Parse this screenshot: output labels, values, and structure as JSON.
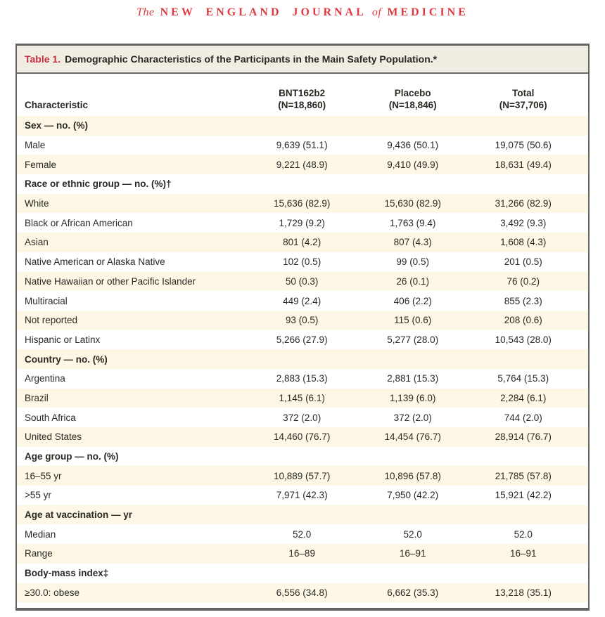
{
  "masthead": {
    "word_the": "The",
    "words_caps_1": "NEW ENGLAND JOURNAL",
    "word_of": "of",
    "words_caps_2": "MEDICINE"
  },
  "colors": {
    "masthead_red": "#de3b41",
    "table_label_red": "#c52f3e",
    "title_bar_bg": "#f2ede2",
    "row_cream": "#fdf7e6",
    "row_white": "#ffffff",
    "frame_gray": "#636363",
    "text": "#2b2824"
  },
  "table": {
    "title_label": "Table 1.",
    "title_text": "Demographic Characteristics of the Participants in the Main Safety Population.*",
    "columns": [
      {
        "line1": "Characteristic",
        "line2": ""
      },
      {
        "line1": "BNT162b2",
        "line2": "(N=18,860)"
      },
      {
        "line1": "Placebo",
        "line2": "(N=18,846)"
      },
      {
        "line1": "Total",
        "line2": "(N=37,706)"
      }
    ],
    "rows": [
      {
        "section": true,
        "label": "Sex — no. (%)"
      },
      {
        "section": false,
        "label": "Male",
        "values": [
          "9,639 (51.1)",
          "9,436 (50.1)",
          "19,075 (50.6)"
        ]
      },
      {
        "section": false,
        "label": "Female",
        "values": [
          "9,221 (48.9)",
          "9,410 (49.9)",
          "18,631 (49.4)"
        ]
      },
      {
        "section": true,
        "label": "Race or ethnic group — no. (%)†"
      },
      {
        "section": false,
        "label": "White",
        "values": [
          "15,636 (82.9)",
          "15,630 (82.9)",
          "31,266 (82.9)"
        ]
      },
      {
        "section": false,
        "label": "Black or African American",
        "values": [
          "1,729 (9.2)",
          "1,763 (9.4)",
          "3,492 (9.3)"
        ]
      },
      {
        "section": false,
        "label": "Asian",
        "values": [
          "801 (4.2)",
          "807 (4.3)",
          "1,608 (4.3)"
        ]
      },
      {
        "section": false,
        "label": "Native American or Alaska Native",
        "values": [
          "102 (0.5)",
          "99 (0.5)",
          "201 (0.5)"
        ]
      },
      {
        "section": false,
        "label": "Native Hawaiian or other Pacific Islander",
        "values": [
          "50 (0.3)",
          "26 (0.1)",
          "76 (0.2)"
        ]
      },
      {
        "section": false,
        "label": "Multiracial",
        "values": [
          "449 (2.4)",
          "406 (2.2)",
          "855 (2.3)"
        ]
      },
      {
        "section": false,
        "label": "Not reported",
        "values": [
          "93 (0.5)",
          "115 (0.6)",
          "208 (0.6)"
        ]
      },
      {
        "section": false,
        "label": "Hispanic or Latinx",
        "values": [
          "5,266 (27.9)",
          "5,277 (28.0)",
          "10,543 (28.0)"
        ]
      },
      {
        "section": true,
        "label": "Country — no. (%)"
      },
      {
        "section": false,
        "label": "Argentina",
        "values": [
          "2,883 (15.3)",
          "2,881 (15.3)",
          "5,764 (15.3)"
        ]
      },
      {
        "section": false,
        "label": "Brazil",
        "values": [
          "1,145 (6.1)",
          "1,139 (6.0)",
          "2,284 (6.1)"
        ]
      },
      {
        "section": false,
        "label": "South Africa",
        "values": [
          "372 (2.0)",
          "372 (2.0)",
          "744 (2.0)"
        ]
      },
      {
        "section": false,
        "label": "United States",
        "values": [
          "14,460 (76.7)",
          "14,454 (76.7)",
          "28,914 (76.7)"
        ]
      },
      {
        "section": true,
        "label": "Age group — no. (%)"
      },
      {
        "section": false,
        "label": "16–55 yr",
        "values": [
          "10,889 (57.7)",
          "10,896 (57.8)",
          "21,785 (57.8)"
        ]
      },
      {
        "section": false,
        "label": ">55 yr",
        "values": [
          "7,971 (42.3)",
          "7,950 (42.2)",
          "15,921 (42.2)"
        ]
      },
      {
        "section": true,
        "label": "Age at vaccination — yr"
      },
      {
        "section": false,
        "label": "Median",
        "values": [
          "52.0",
          "52.0",
          "52.0"
        ]
      },
      {
        "section": false,
        "label": "Range",
        "values": [
          "16–89",
          "16–91",
          "16–91"
        ]
      },
      {
        "section": true,
        "label": "Body-mass index‡"
      },
      {
        "section": false,
        "label": "≥30.0: obese",
        "values": [
          "6,556 (34.8)",
          "6,662 (35.3)",
          "13,218 (35.1)"
        ]
      }
    ]
  }
}
